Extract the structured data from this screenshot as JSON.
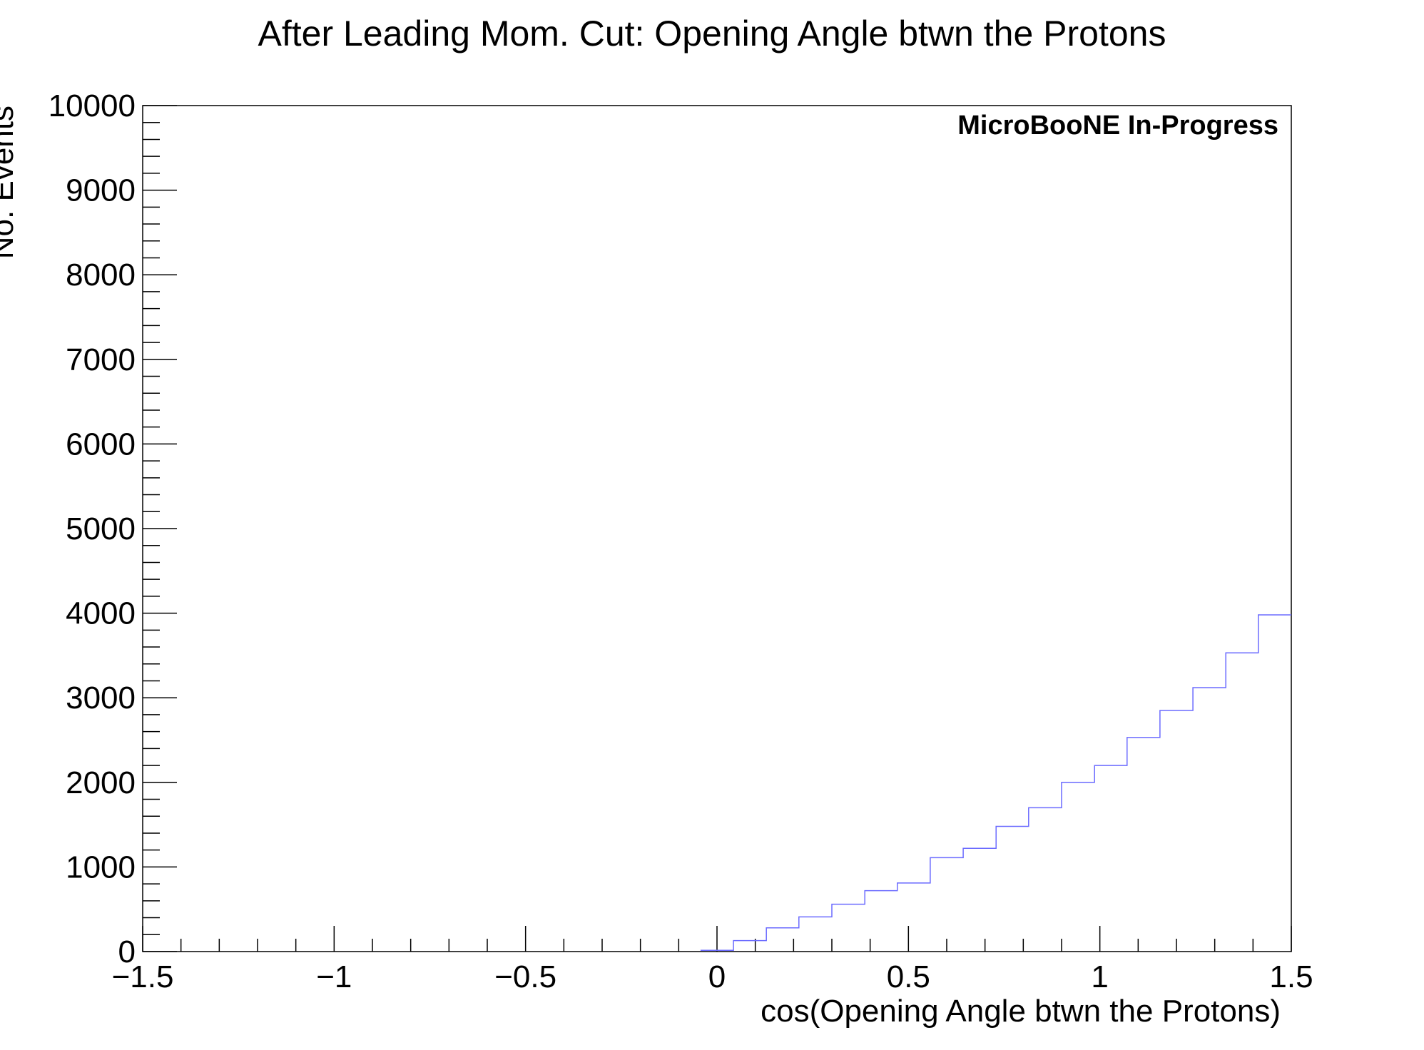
{
  "chart_data": {
    "type": "histogram",
    "title": "After Leading Mom. Cut: Opening Angle btwn the Protons",
    "xlabel": "cos(Opening Angle btwn the Protons)",
    "ylabel": "No. Events",
    "annotation": "MicroBooNE In-Progress",
    "xlim": [
      -1.5,
      1.5
    ],
    "ylim": [
      0,
      10000
    ],
    "x_ticks": [
      -1.5,
      -1,
      -0.5,
      0,
      0.5,
      1,
      1.5
    ],
    "x_tick_labels": [
      "−1.5",
      "−1",
      "−0.5",
      "0",
      "0.5",
      "1",
      "1.5"
    ],
    "y_ticks": [
      0,
      1000,
      2000,
      3000,
      4000,
      5000,
      6000,
      7000,
      8000,
      9000,
      10000
    ],
    "y_tick_labels": [
      "0",
      "1000",
      "2000",
      "3000",
      "4000",
      "5000",
      "6000",
      "7000",
      "8000",
      "9000",
      "10000"
    ],
    "line_color": "#6b6bff",
    "grid": false,
    "bin_edges": [
      -0.043,
      0.043,
      0.129,
      0.214,
      0.3,
      0.386,
      0.471,
      0.557,
      0.643,
      0.729,
      0.814,
      0.9,
      0.986,
      1.071,
      1.157,
      1.243,
      1.329,
      1.414,
      1.5
    ],
    "counts": [
      15,
      130,
      280,
      410,
      560,
      720,
      810,
      1110,
      1220,
      1480,
      1700,
      2000,
      2200,
      2530,
      2850,
      3120,
      3530,
      3980
    ]
  }
}
